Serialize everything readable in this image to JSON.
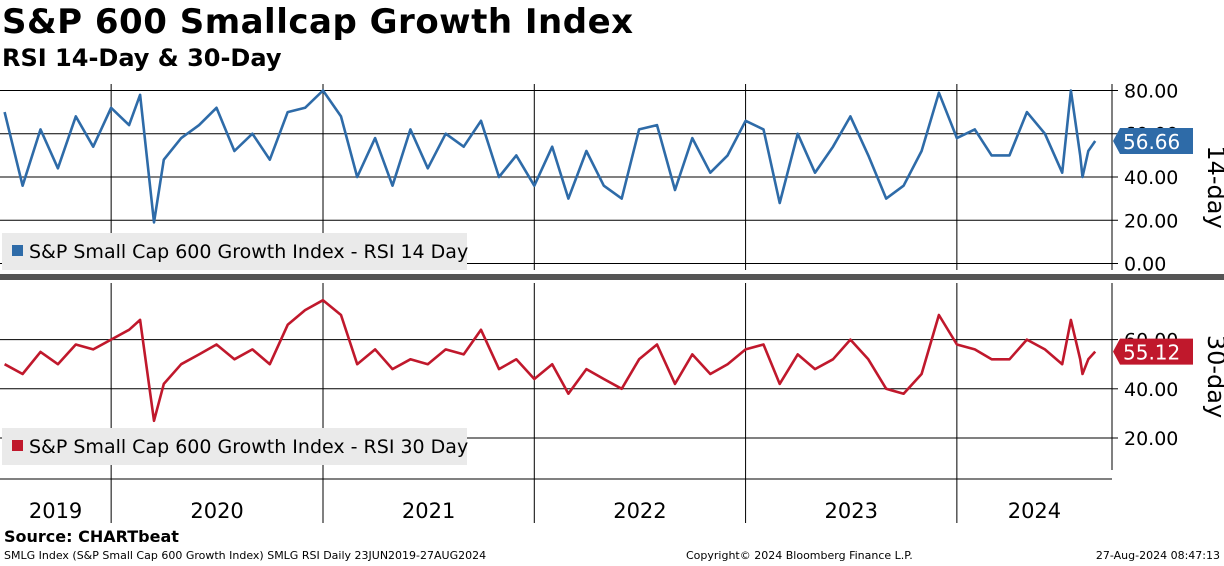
{
  "title": "S&P 600 Smallcap Growth Index",
  "subtitle": "RSI 14-Day & 30-Day",
  "source": "Source: CHARTbeat",
  "footer": {
    "left": "SMLG Index (S&P Small Cap 600 Growth Index) SMLG RSI  Daily 23JUN2019-27AUG2024",
    "center": "Copyright© 2024 Bloomberg Finance L.P.",
    "right": "27-Aug-2024 08:47:13"
  },
  "colors": {
    "rsi14": "#2e6ba8",
    "rsi30": "#c0182c"
  },
  "chart_data": [
    {
      "type": "line",
      "panel": "top",
      "axis_label": "14-day",
      "ylim": [
        -3,
        83
      ],
      "yticks": [
        "80.00",
        "60.00",
        "40.00",
        "20.00",
        "0.00"
      ],
      "ytick_values": [
        80,
        60,
        40,
        20,
        0
      ],
      "legend": "S&P Small Cap 600 Growth Index - RSI 14 Day",
      "last_value_label": "56.66",
      "last_value": 56.66,
      "x": [
        "2019-07-01",
        "2019-08-01",
        "2019-09-01",
        "2019-10-01",
        "2019-11-01",
        "2019-12-01",
        "2020-01-01",
        "2020-02-01",
        "2020-02-20",
        "2020-03-15",
        "2020-04-01",
        "2020-05-01",
        "2020-06-01",
        "2020-07-01",
        "2020-08-01",
        "2020-09-01",
        "2020-10-01",
        "2020-11-01",
        "2020-12-01",
        "2021-01-01",
        "2021-02-01",
        "2021-03-01",
        "2021-04-01",
        "2021-05-01",
        "2021-06-01",
        "2021-07-01",
        "2021-08-01",
        "2021-09-01",
        "2021-10-01",
        "2021-11-01",
        "2021-12-01",
        "2022-01-01",
        "2022-02-01",
        "2022-03-01",
        "2022-04-01",
        "2022-05-01",
        "2022-06-01",
        "2022-07-01",
        "2022-08-01",
        "2022-09-01",
        "2022-10-01",
        "2022-11-01",
        "2022-12-01",
        "2023-01-01",
        "2023-02-01",
        "2023-03-01",
        "2023-04-01",
        "2023-05-01",
        "2023-06-01",
        "2023-07-01",
        "2023-08-01",
        "2023-09-01",
        "2023-10-01",
        "2023-11-01",
        "2023-12-01",
        "2024-01-01",
        "2024-02-01",
        "2024-03-01",
        "2024-04-01",
        "2024-05-01",
        "2024-06-01",
        "2024-07-01",
        "2024-07-16",
        "2024-08-01",
        "2024-08-05",
        "2024-08-15",
        "2024-08-27"
      ],
      "values": [
        70,
        36,
        62,
        44,
        68,
        54,
        72,
        64,
        78,
        19,
        48,
        58,
        64,
        72,
        52,
        60,
        48,
        70,
        72,
        80,
        68,
        40,
        58,
        36,
        62,
        44,
        60,
        54,
        66,
        40,
        50,
        36,
        54,
        30,
        52,
        36,
        30,
        62,
        64,
        34,
        58,
        42,
        50,
        66,
        62,
        28,
        60,
        42,
        54,
        68,
        50,
        30,
        36,
        52,
        79,
        58,
        62,
        50,
        50,
        70,
        60,
        42,
        80,
        50,
        40,
        52,
        56.66
      ]
    },
    {
      "type": "line",
      "panel": "bottom",
      "axis_label": "30-day",
      "ylim": [
        7,
        83
      ],
      "yticks": [
        "60.00",
        "40.00",
        "20.00"
      ],
      "ytick_values": [
        60,
        40,
        20
      ],
      "legend": "S&P Small Cap 600 Growth Index - RSI 30 Day",
      "last_value_label": "55.12",
      "last_value": 55.12,
      "x": [
        "2019-07-01",
        "2019-08-01",
        "2019-09-01",
        "2019-10-01",
        "2019-11-01",
        "2019-12-01",
        "2020-01-01",
        "2020-02-01",
        "2020-02-20",
        "2020-03-15",
        "2020-04-01",
        "2020-05-01",
        "2020-06-01",
        "2020-07-01",
        "2020-08-01",
        "2020-09-01",
        "2020-10-01",
        "2020-11-01",
        "2020-12-01",
        "2021-01-01",
        "2021-02-01",
        "2021-03-01",
        "2021-04-01",
        "2021-05-01",
        "2021-06-01",
        "2021-07-01",
        "2021-08-01",
        "2021-09-01",
        "2021-10-01",
        "2021-11-01",
        "2021-12-01",
        "2022-01-01",
        "2022-02-01",
        "2022-03-01",
        "2022-04-01",
        "2022-05-01",
        "2022-06-01",
        "2022-07-01",
        "2022-08-01",
        "2022-09-01",
        "2022-10-01",
        "2022-11-01",
        "2022-12-01",
        "2023-01-01",
        "2023-02-01",
        "2023-03-01",
        "2023-04-01",
        "2023-05-01",
        "2023-06-01",
        "2023-07-01",
        "2023-08-01",
        "2023-09-01",
        "2023-10-01",
        "2023-11-01",
        "2023-12-01",
        "2024-01-01",
        "2024-02-01",
        "2024-03-01",
        "2024-04-01",
        "2024-05-01",
        "2024-06-01",
        "2024-07-01",
        "2024-07-16",
        "2024-08-01",
        "2024-08-05",
        "2024-08-15",
        "2024-08-27"
      ],
      "values": [
        50,
        46,
        55,
        50,
        58,
        56,
        60,
        64,
        68,
        27,
        42,
        50,
        54,
        58,
        52,
        56,
        50,
        66,
        72,
        76,
        70,
        50,
        56,
        48,
        52,
        50,
        56,
        54,
        64,
        48,
        52,
        44,
        50,
        38,
        48,
        44,
        40,
        52,
        58,
        42,
        54,
        46,
        50,
        56,
        58,
        42,
        54,
        48,
        52,
        60,
        52,
        40,
        38,
        46,
        70,
        58,
        56,
        52,
        52,
        60,
        56,
        50,
        68,
        52,
        46,
        52,
        55.12
      ]
    }
  ],
  "x_axis": {
    "years": [
      "2019",
      "2020",
      "2021",
      "2022",
      "2023",
      "2024"
    ],
    "year_starts": [
      "2019-06-23",
      "2020-01-01",
      "2021-01-01",
      "2022-01-01",
      "2023-01-01",
      "2024-01-01"
    ],
    "range": [
      "2019-06-23",
      "2024-09-25"
    ]
  }
}
